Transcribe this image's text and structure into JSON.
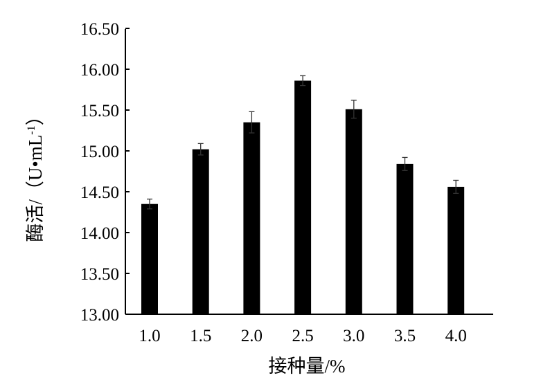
{
  "chart_data": {
    "type": "bar",
    "title": "",
    "xlabel": "接种量/%",
    "ylabel": "酶活/（U•mL",
    "ylabel_sup": "-1",
    "ylabel_end": "）",
    "categories": [
      "1.0",
      "1.5",
      "2.0",
      "2.5",
      "3.0",
      "3.5",
      "4.0"
    ],
    "values": [
      14.35,
      15.02,
      15.35,
      15.86,
      15.51,
      14.84,
      14.56
    ],
    "errors": [
      0.06,
      0.07,
      0.13,
      0.06,
      0.11,
      0.08,
      0.08
    ],
    "ylim": [
      13.0,
      16.5
    ],
    "yticks": [
      "13.00",
      "13.50",
      "14.00",
      "14.50",
      "15.00",
      "15.50",
      "16.00",
      "16.50"
    ],
    "grid": false,
    "bar_color": "#000000"
  }
}
